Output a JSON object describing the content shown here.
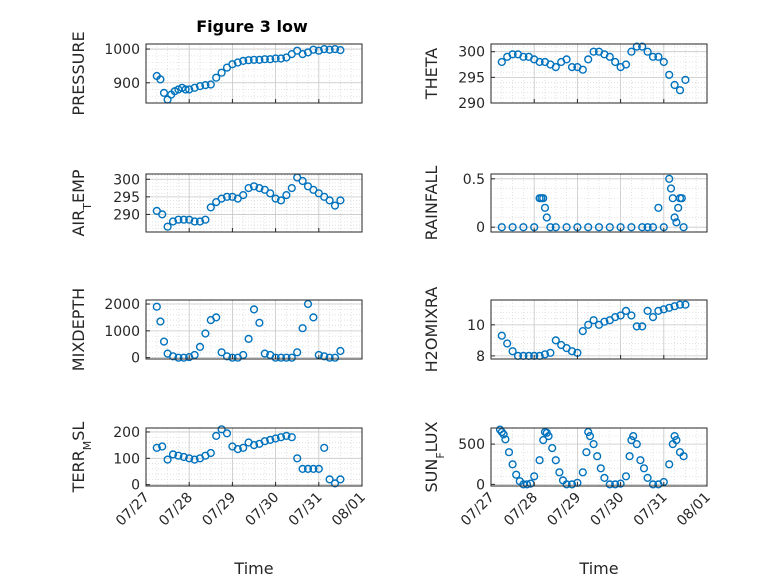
{
  "figure": {
    "title": "Figure 3 low"
  },
  "marker_color": "#0072BD",
  "chart_data": [
    {
      "type": "scatter",
      "title": "Figure 3 low",
      "ylabel": "PRESSURE",
      "ylabel_sub": "",
      "ylabel_sub_index": -1,
      "xlabel": "",
      "ylim": [
        840,
        1015
      ],
      "yticks": [
        900,
        1000
      ],
      "x": [
        "07/27 06:00",
        "07/27 08:00",
        "07/27 10:00",
        "07/27 12:00",
        "07/27 14:00",
        "07/27 16:00",
        "07/27 18:00",
        "07/27 20:00",
        "07/27 22:00",
        "07/28 00:00",
        "07/28 03:00",
        "07/28 06:00",
        "07/28 09:00",
        "07/28 12:00",
        "07/28 15:00",
        "07/28 18:00",
        "07/28 21:00",
        "07/29 00:00",
        "07/29 03:00",
        "07/29 06:00",
        "07/29 09:00",
        "07/29 12:00",
        "07/29 15:00",
        "07/29 18:00",
        "07/29 21:00",
        "07/30 00:00",
        "07/30 03:00",
        "07/30 06:00",
        "07/30 09:00",
        "07/30 12:00",
        "07/30 15:00",
        "07/30 18:00",
        "07/30 21:00",
        "07/31 00:00",
        "07/31 03:00",
        "07/31 06:00",
        "07/31 09:00",
        "07/31 12:00"
      ],
      "y": [
        920,
        910,
        870,
        850,
        865,
        875,
        880,
        885,
        880,
        880,
        885,
        890,
        893,
        895,
        915,
        930,
        945,
        955,
        960,
        965,
        967,
        968,
        968,
        970,
        970,
        972,
        972,
        975,
        985,
        995,
        985,
        990,
        998,
        995,
        1000,
        998,
        1000,
        997
      ]
    },
    {
      "type": "scatter",
      "title": "",
      "ylabel": "THETA",
      "ylabel_sub": "",
      "ylabel_sub_index": -1,
      "xlabel": "",
      "ylim": [
        290,
        301.5
      ],
      "yticks": [
        290,
        295,
        300
      ],
      "x": [
        "07/27 06:00",
        "07/27 09:00",
        "07/27 12:00",
        "07/27 15:00",
        "07/27 18:00",
        "07/27 21:00",
        "07/28 00:00",
        "07/28 03:00",
        "07/28 06:00",
        "07/28 09:00",
        "07/28 12:00",
        "07/28 15:00",
        "07/28 18:00",
        "07/28 21:00",
        "07/29 00:00",
        "07/29 03:00",
        "07/29 06:00",
        "07/29 09:00",
        "07/29 12:00",
        "07/29 15:00",
        "07/29 18:00",
        "07/29 21:00",
        "07/30 00:00",
        "07/30 03:00",
        "07/30 06:00",
        "07/30 09:00",
        "07/30 12:00",
        "07/30 15:00",
        "07/30 18:00",
        "07/30 21:00",
        "07/31 00:00",
        "07/31 03:00",
        "07/31 06:00",
        "07/31 09:00",
        "07/31 12:00"
      ],
      "y": [
        298,
        299,
        299.5,
        299.5,
        299,
        299,
        298.5,
        298,
        298,
        297.5,
        297,
        298,
        298.5,
        297,
        297,
        296.5,
        298.5,
        300,
        300,
        299.5,
        299,
        298,
        297,
        297.5,
        300,
        301,
        301,
        300,
        299,
        299,
        298,
        295.5,
        293.5,
        292.5,
        294.5
      ]
    },
    {
      "type": "scatter",
      "title": "",
      "ylabel": "AIRTEMP",
      "ylabel_sub": "T",
      "ylabel_sub_index": 3,
      "xlabel": "",
      "ylim": [
        285,
        301.5
      ],
      "yticks": [
        290,
        295,
        300
      ],
      "x": [
        "07/27 06:00",
        "07/27 09:00",
        "07/27 12:00",
        "07/27 15:00",
        "07/27 18:00",
        "07/27 21:00",
        "07/28 00:00",
        "07/28 03:00",
        "07/28 06:00",
        "07/28 09:00",
        "07/28 12:00",
        "07/28 15:00",
        "07/28 18:00",
        "07/28 21:00",
        "07/29 00:00",
        "07/29 03:00",
        "07/29 06:00",
        "07/29 09:00",
        "07/29 12:00",
        "07/29 15:00",
        "07/29 18:00",
        "07/29 21:00",
        "07/30 00:00",
        "07/30 03:00",
        "07/30 06:00",
        "07/30 09:00",
        "07/30 12:00",
        "07/30 15:00",
        "07/30 18:00",
        "07/30 21:00",
        "07/31 00:00",
        "07/31 03:00",
        "07/31 06:00",
        "07/31 09:00",
        "07/31 12:00"
      ],
      "y": [
        291,
        290,
        286.5,
        288,
        288.5,
        288.5,
        288.5,
        288,
        288,
        288.5,
        292,
        293.5,
        294.5,
        295,
        295,
        294.5,
        295.5,
        297.5,
        298,
        297.5,
        297,
        296,
        294.5,
        294,
        295.5,
        297.5,
        300.5,
        299.5,
        298,
        297,
        296,
        295,
        294,
        292.5,
        294
      ]
    },
    {
      "type": "scatter",
      "title": "",
      "ylabel": "RAINFALL",
      "ylabel_sub": "",
      "ylabel_sub_index": -1,
      "xlabel": "",
      "ylim": [
        -0.05,
        0.55
      ],
      "yticks": [
        0,
        0.5
      ],
      "x": [
        "07/27 06:00",
        "07/27 12:00",
        "07/27 18:00",
        "07/28 00:00",
        "07/28 03:00",
        "07/28 04:00",
        "07/28 05:00",
        "07/28 06:00",
        "07/28 07:00",
        "07/28 09:00",
        "07/28 12:00",
        "07/28 18:00",
        "07/29 00:00",
        "07/29 06:00",
        "07/29 12:00",
        "07/29 18:00",
        "07/30 00:00",
        "07/30 06:00",
        "07/30 12:00",
        "07/30 15:00",
        "07/30 18:00",
        "07/30 21:00",
        "07/31 00:00",
        "07/31 03:00",
        "07/31 04:00",
        "07/31 05:00",
        "07/31 06:00",
        "07/31 07:00",
        "07/31 08:00",
        "07/31 09:00",
        "07/31 10:00",
        "07/31 11:00"
      ],
      "y": [
        0,
        0,
        0,
        0,
        0.3,
        0.3,
        0.3,
        0.2,
        0.1,
        0,
        0,
        0,
        0,
        0,
        0,
        0,
        0,
        0,
        0,
        0,
        0,
        0.2,
        0,
        0.5,
        0.4,
        0.3,
        0.1,
        0.05,
        0.2,
        0.3,
        0.3,
        0
      ]
    },
    {
      "type": "scatter",
      "title": "",
      "ylabel": "MIXDEPTH",
      "ylabel_sub": "",
      "ylabel_sub_index": -1,
      "xlabel": "",
      "ylim": [
        -50,
        2150
      ],
      "yticks": [
        0,
        1000,
        2000
      ],
      "x": [
        "07/27 06:00",
        "07/27 08:00",
        "07/27 10:00",
        "07/27 12:00",
        "07/27 15:00",
        "07/27 18:00",
        "07/27 21:00",
        "07/28 00:00",
        "07/28 03:00",
        "07/28 06:00",
        "07/28 09:00",
        "07/28 12:00",
        "07/28 15:00",
        "07/28 18:00",
        "07/28 21:00",
        "07/29 00:00",
        "07/29 03:00",
        "07/29 06:00",
        "07/29 09:00",
        "07/29 12:00",
        "07/29 15:00",
        "07/29 18:00",
        "07/29 21:00",
        "07/30 00:00",
        "07/30 03:00",
        "07/30 06:00",
        "07/30 09:00",
        "07/30 12:00",
        "07/30 15:00",
        "07/30 18:00",
        "07/30 21:00",
        "07/31 00:00",
        "07/31 03:00",
        "07/31 06:00",
        "07/31 09:00",
        "07/31 12:00"
      ],
      "y": [
        1900,
        1350,
        600,
        150,
        50,
        0,
        0,
        20,
        100,
        400,
        900,
        1400,
        1500,
        200,
        50,
        0,
        0,
        100,
        700,
        1800,
        1300,
        150,
        100,
        0,
        0,
        0,
        0,
        200,
        1100,
        2000,
        1500,
        100,
        50,
        0,
        0,
        250
      ]
    },
    {
      "type": "scatter",
      "title": "",
      "ylabel": "H2OMIXRA",
      "ylabel_sub": "",
      "ylabel_sub_index": -1,
      "xlabel": "",
      "ylim": [
        7.8,
        11.6
      ],
      "yticks": [
        8,
        10
      ],
      "x": [
        "07/27 06:00",
        "07/27 09:00",
        "07/27 12:00",
        "07/27 15:00",
        "07/27 18:00",
        "07/27 21:00",
        "07/28 00:00",
        "07/28 03:00",
        "07/28 06:00",
        "07/28 09:00",
        "07/28 12:00",
        "07/28 15:00",
        "07/28 18:00",
        "07/28 21:00",
        "07/29 00:00",
        "07/29 03:00",
        "07/29 06:00",
        "07/29 09:00",
        "07/29 12:00",
        "07/29 15:00",
        "07/29 18:00",
        "07/29 21:00",
        "07/30 00:00",
        "07/30 03:00",
        "07/30 06:00",
        "07/30 09:00",
        "07/30 12:00",
        "07/30 15:00",
        "07/30 18:00",
        "07/30 21:00",
        "07/31 00:00",
        "07/31 03:00",
        "07/31 06:00",
        "07/31 09:00",
        "07/31 12:00"
      ],
      "y": [
        9.3,
        8.8,
        8.3,
        8.0,
        8.0,
        8.0,
        8.0,
        8.0,
        8.1,
        8.2,
        9.0,
        8.7,
        8.5,
        8.3,
        8.2,
        9.6,
        10.0,
        10.3,
        10.0,
        10.2,
        10.3,
        10.5,
        10.6,
        10.9,
        10.6,
        9.9,
        9.9,
        10.9,
        10.5,
        10.9,
        11.0,
        11.1,
        11.2,
        11.3,
        11.3
      ]
    },
    {
      "type": "scatter",
      "title": "",
      "ylabel": "TERRMSL",
      "ylabel_sub": "M",
      "ylabel_sub_index": 4,
      "xlabel": "Time",
      "xticks": [
        "07/27",
        "07/28",
        "07/29",
        "07/30",
        "07/31",
        "08/01"
      ],
      "ylim": [
        -5,
        215
      ],
      "yticks": [
        0,
        100,
        200
      ],
      "x": [
        "07/27 06:00",
        "07/27 09:00",
        "07/27 12:00",
        "07/27 15:00",
        "07/27 18:00",
        "07/27 21:00",
        "07/28 00:00",
        "07/28 03:00",
        "07/28 06:00",
        "07/28 09:00",
        "07/28 12:00",
        "07/28 15:00",
        "07/28 18:00",
        "07/28 21:00",
        "07/29 00:00",
        "07/29 03:00",
        "07/29 06:00",
        "07/29 09:00",
        "07/29 12:00",
        "07/29 15:00",
        "07/29 18:00",
        "07/29 21:00",
        "07/30 00:00",
        "07/30 03:00",
        "07/30 06:00",
        "07/30 09:00",
        "07/30 12:00",
        "07/30 15:00",
        "07/30 18:00",
        "07/30 21:00",
        "07/31 00:00",
        "07/31 03:00",
        "07/31 06:00",
        "07/31 09:00",
        "07/31 12:00"
      ],
      "y": [
        140,
        145,
        95,
        115,
        110,
        105,
        100,
        95,
        100,
        110,
        120,
        185,
        210,
        195,
        145,
        135,
        140,
        160,
        150,
        155,
        165,
        170,
        175,
        180,
        185,
        180,
        100,
        60,
        60,
        60,
        60,
        140,
        20,
        5,
        20
      ]
    },
    {
      "type": "scatter",
      "title": "",
      "ylabel": "SUNFLUX",
      "ylabel_sub": "F",
      "ylabel_sub_index": 3,
      "xlabel": "Time",
      "xticks": [
        "07/27",
        "07/28",
        "07/29",
        "07/30",
        "07/31",
        "08/01"
      ],
      "ylim": [
        -20,
        700
      ],
      "yticks": [
        0,
        500
      ],
      "x": [
        "07/27 05:00",
        "07/27 06:00",
        "07/27 07:00",
        "07/27 08:00",
        "07/27 10:00",
        "07/27 12:00",
        "07/27 14:00",
        "07/27 16:00",
        "07/27 18:00",
        "07/27 20:00",
        "07/27 22:00",
        "07/28 00:00",
        "07/28 03:00",
        "07/28 05:00",
        "07/28 06:00",
        "07/28 07:00",
        "07/28 08:00",
        "07/28 10:00",
        "07/28 12:00",
        "07/28 14:00",
        "07/28 16:00",
        "07/28 18:00",
        "07/28 21:00",
        "07/29 00:00",
        "07/29 03:00",
        "07/29 05:00",
        "07/29 06:00",
        "07/29 07:00",
        "07/29 09:00",
        "07/29 11:00",
        "07/29 13:00",
        "07/29 15:00",
        "07/29 18:00",
        "07/29 21:00",
        "07/30 00:00",
        "07/30 03:00",
        "07/30 05:00",
        "07/30 06:00",
        "07/30 07:00",
        "07/30 09:00",
        "07/30 11:00",
        "07/30 13:00",
        "07/30 15:00",
        "07/30 18:00",
        "07/30 21:00",
        "07/31 00:00",
        "07/31 03:00",
        "07/31 05:00",
        "07/31 06:00",
        "07/31 07:00",
        "07/31 09:00",
        "07/31 11:00"
      ],
      "y": [
        680,
        650,
        620,
        560,
        400,
        250,
        120,
        40,
        0,
        0,
        10,
        100,
        300,
        550,
        650,
        640,
        600,
        450,
        300,
        150,
        50,
        0,
        0,
        20,
        150,
        400,
        650,
        600,
        500,
        350,
        200,
        80,
        0,
        0,
        10,
        100,
        350,
        550,
        600,
        500,
        300,
        200,
        80,
        0,
        0,
        30,
        250,
        500,
        600,
        550,
        400,
        350
      ]
    }
  ]
}
